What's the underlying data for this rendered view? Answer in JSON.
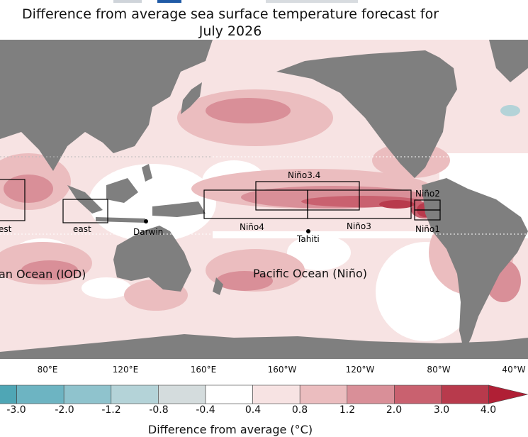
{
  "title_line1": "Difference from average sea surface temperature forecast for",
  "title_line2": "July 2026",
  "map": {
    "boxes": {
      "iod_west": "est",
      "iod_east": "east",
      "nino34": "Niño3.4",
      "nino4": "Niño4",
      "nino3": "Niño3",
      "nino12_top": "Niño2",
      "nino12_bottom": "Niño1"
    },
    "points": {
      "darwin": "Darwin",
      "tahiti": "Tahiti"
    },
    "regions": {
      "indian": "an Ocean (IOD)",
      "pacific": "Pacific Ocean (Niño)"
    },
    "colors": {
      "land": "#7f7f7f",
      "ocean": "#ffffff",
      "box": "#000000"
    }
  },
  "lon_labels": [
    "80°E",
    "120°E",
    "160°E",
    "160°W",
    "120°W",
    "80°W",
    "40°W"
  ],
  "colorbar": {
    "ticks": [
      "-3.0",
      "-2.0",
      "-1.2",
      "-0.8",
      "-0.4",
      "0.4",
      "0.8",
      "1.2",
      "2.0",
      "3.0",
      "4.0"
    ],
    "colors": [
      "#4fa6b5",
      "#6db4c2",
      "#8fc3cd",
      "#b4d3d8",
      "#d4dcdd",
      "#ffffff",
      "#f7e3e3",
      "#ebbdbf",
      "#d98f98",
      "#c9616f",
      "#b83a4c",
      "#b01f35"
    ],
    "label": "Difference from average (°C)"
  }
}
